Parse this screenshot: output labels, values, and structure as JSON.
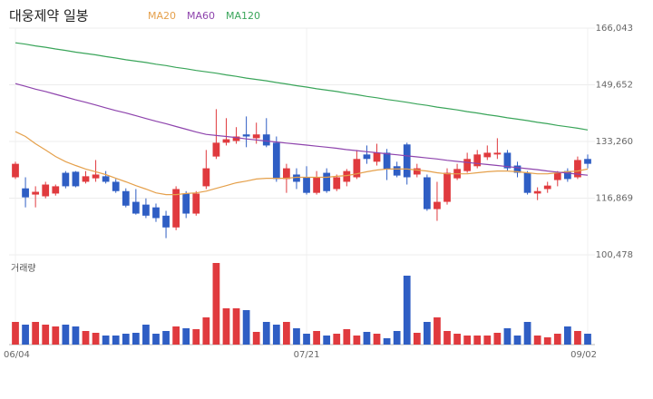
{
  "chart_data": {
    "type": "candlestick",
    "title": "대웅제약 일봉",
    "volume_label": "거래량",
    "up_color": "#e03a3e",
    "down_color": "#2f5ec4",
    "grid": true,
    "categories": [
      "06/04",
      null,
      null,
      null,
      null,
      null,
      null,
      null,
      null,
      null,
      null,
      null,
      null,
      null,
      null,
      null,
      null,
      null,
      null,
      null,
      null,
      null,
      null,
      null,
      null,
      null,
      null,
      null,
      null,
      "07/21",
      null,
      null,
      null,
      null,
      null,
      null,
      null,
      null,
      null,
      null,
      null,
      null,
      null,
      null,
      null,
      null,
      null,
      null,
      null,
      null,
      null,
      null,
      null,
      null,
      null,
      null,
      null,
      "09/02"
    ],
    "ylim": [
      100478,
      166043
    ],
    "yticks": [
      {
        "value": 100478,
        "label": "100,478"
      },
      {
        "value": 116869,
        "label": "116,869"
      },
      {
        "value": 133260,
        "label": "133,260"
      },
      {
        "value": 149652,
        "label": "149,652"
      },
      {
        "value": 166043,
        "label": "166,043"
      }
    ],
    "ohlc": [
      [
        122900,
        127400,
        122400,
        126800
      ],
      [
        119700,
        122900,
        114200,
        117100
      ],
      [
        117900,
        120300,
        114200,
        118700
      ],
      [
        117400,
        121600,
        116800,
        120800
      ],
      [
        118200,
        120800,
        117600,
        120300
      ],
      [
        124200,
        124700,
        119700,
        120300
      ],
      [
        124500,
        124700,
        120000,
        120300
      ],
      [
        121600,
        124700,
        121100,
        123200
      ],
      [
        122600,
        127900,
        121600,
        123700
      ],
      [
        123200,
        124700,
        121100,
        121600
      ],
      [
        121600,
        122400,
        118400,
        118900
      ],
      [
        118900,
        119700,
        114200,
        114700
      ],
      [
        115800,
        119500,
        112100,
        112400
      ],
      [
        115000,
        116800,
        111100,
        111800
      ],
      [
        114200,
        115300,
        110000,
        111100
      ],
      [
        111800,
        113200,
        105300,
        108400
      ],
      [
        108400,
        120300,
        107600,
        119500
      ],
      [
        118200,
        118900,
        111100,
        112400
      ],
      [
        112400,
        118900,
        111800,
        118200
      ],
      [
        120300,
        130800,
        119500,
        125500
      ],
      [
        128900,
        142600,
        128200,
        132900
      ],
      [
        132900,
        140000,
        132100,
        133900
      ],
      [
        133400,
        137400,
        132600,
        134700
      ],
      [
        135300,
        140500,
        131600,
        134700
      ],
      [
        134200,
        138700,
        132600,
        135300
      ],
      [
        135300,
        140000,
        131600,
        132100
      ],
      [
        132900,
        134700,
        121600,
        122400
      ],
      [
        122400,
        126800,
        118400,
        125500
      ],
      [
        123700,
        125500,
        119500,
        121600
      ],
      [
        122900,
        126100,
        117900,
        118400
      ],
      [
        118400,
        124700,
        117900,
        122900
      ],
      [
        124200,
        125500,
        118400,
        118900
      ],
      [
        119500,
        123700,
        118900,
        122900
      ],
      [
        121600,
        125300,
        120300,
        124700
      ],
      [
        122900,
        130800,
        122400,
        128200
      ],
      [
        129500,
        132100,
        126800,
        128200
      ],
      [
        127400,
        132600,
        126300,
        130000
      ],
      [
        130000,
        131100,
        122100,
        125300
      ],
      [
        126100,
        127400,
        122900,
        123400
      ],
      [
        132400,
        132900,
        120800,
        122900
      ],
      [
        123700,
        126800,
        122900,
        125500
      ],
      [
        122900,
        123700,
        113200,
        113700
      ],
      [
        113700,
        121600,
        110300,
        115800
      ],
      [
        115800,
        125500,
        115000,
        124200
      ],
      [
        122600,
        126800,
        122100,
        125300
      ],
      [
        124700,
        130000,
        124200,
        128200
      ],
      [
        126100,
        130800,
        125500,
        129500
      ],
      [
        128700,
        132100,
        127900,
        130000
      ],
      [
        129500,
        134200,
        128200,
        130000
      ],
      [
        130000,
        130800,
        124700,
        125500
      ],
      [
        126300,
        127400,
        122900,
        124200
      ],
      [
        124200,
        124700,
        117900,
        118400
      ],
      [
        118200,
        120000,
        116300,
        118900
      ],
      [
        119500,
        121600,
        118400,
        120500
      ],
      [
        122100,
        124700,
        120300,
        124200
      ],
      [
        124700,
        125500,
        121600,
        122400
      ],
      [
        122900,
        128900,
        122400,
        127900
      ],
      [
        128200,
        129500,
        125500,
        126800
      ]
    ],
    "series": [
      {
        "name": "MA20",
        "color": "#e5a04b",
        "values": [
          136100,
          134700,
          132600,
          130800,
          128900,
          127400,
          126300,
          125300,
          124500,
          123700,
          122600,
          121600,
          120500,
          119500,
          118400,
          117900,
          117900,
          118200,
          118400,
          118900,
          119700,
          120500,
          121300,
          121800,
          122400,
          122600,
          122600,
          122600,
          122900,
          122900,
          122900,
          122900,
          123200,
          123400,
          123900,
          124500,
          125000,
          125300,
          125300,
          125300,
          125000,
          124700,
          124200,
          123900,
          123900,
          123900,
          124200,
          124500,
          124700,
          124700,
          124500,
          124200,
          123900,
          123900,
          124200,
          124500,
          124700,
          125300
        ]
      },
      {
        "name": "MA60",
        "color": "#8e44ad",
        "values": [
          150000,
          149200,
          148400,
          147700,
          146900,
          146100,
          145300,
          144600,
          143800,
          143000,
          142200,
          141500,
          140700,
          139900,
          139100,
          138400,
          137600,
          136800,
          136000,
          135300,
          135000,
          134700,
          134400,
          134000,
          133700,
          133400,
          133100,
          132800,
          132500,
          132200,
          131900,
          131600,
          131300,
          130900,
          130600,
          130300,
          130000,
          129700,
          129400,
          129100,
          128800,
          128500,
          128200,
          127800,
          127500,
          127200,
          126900,
          126600,
          126300,
          126000,
          125700,
          125400,
          125100,
          124700,
          124400,
          124100,
          123800,
          123500
        ]
      },
      {
        "name": "MA120",
        "color": "#3aa55a",
        "values": [
          161800,
          161400,
          160900,
          160500,
          160000,
          159600,
          159100,
          158700,
          158300,
          157800,
          157400,
          156900,
          156500,
          156100,
          155600,
          155200,
          154700,
          154300,
          153800,
          153400,
          153000,
          152500,
          152100,
          151600,
          151200,
          150800,
          150300,
          149900,
          149400,
          149000,
          148500,
          148100,
          147700,
          147200,
          146800,
          146300,
          145900,
          145400,
          145000,
          144600,
          144100,
          143700,
          143200,
          142800,
          142400,
          141900,
          141500,
          141000,
          140600,
          140100,
          139700,
          139300,
          138800,
          138400,
          137900,
          137500,
          137100,
          136600
        ]
      }
    ],
    "volume_ylim": [
      0,
      100
    ],
    "volume": [
      25,
      22,
      25,
      22,
      20,
      22,
      20,
      15,
      13,
      10,
      10,
      12,
      13,
      22,
      12,
      15,
      20,
      18,
      17,
      30,
      90,
      40,
      40,
      38,
      14,
      25,
      22,
      25,
      18,
      12,
      15,
      10,
      12,
      17,
      10,
      14,
      12,
      7,
      15,
      76,
      13,
      25,
      30,
      15,
      12,
      10,
      10,
      10,
      13,
      18,
      10,
      25,
      10,
      8,
      12,
      20,
      15,
      12
    ]
  }
}
